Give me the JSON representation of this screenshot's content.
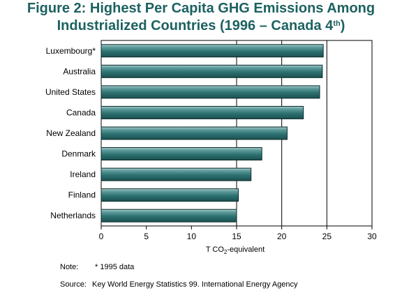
{
  "chart_data": {
    "type": "bar",
    "orientation": "horizontal",
    "title_line1": "Figure 2: Highest Per Capita GHG Emissions Among",
    "title_line2_main": "Industrialized Countries (1996 – Canada 4",
    "title_line2_sup": "th",
    "title_line2_end": ")",
    "categories": [
      "Luxembourg*",
      "Australia",
      "United States",
      "Canada",
      "New Zealand",
      "Denmark",
      "Ireland",
      "Finland",
      "Netherlands"
    ],
    "values": [
      24.6,
      24.5,
      24.2,
      22.4,
      20.6,
      17.8,
      16.6,
      15.2,
      15.0
    ],
    "xlabel_prefix": "T CO",
    "xlabel_sub": "2",
    "xlabel_suffix": "-equivalent",
    "xlim": [
      0,
      30
    ],
    "xticks": [
      0,
      5,
      10,
      15,
      20,
      25,
      30
    ],
    "grid": "vertical gridlines at 15, 20, 25",
    "bar_color": "#2e7272",
    "bar_highlight": "#a6cccc",
    "title_color": "#1d6161"
  },
  "notes": {
    "note_label": "Note:",
    "note_text": "* 1995 data",
    "source_label": "Source:",
    "source_text": "Key World Energy Statistics 99. International Energy Agency"
  }
}
